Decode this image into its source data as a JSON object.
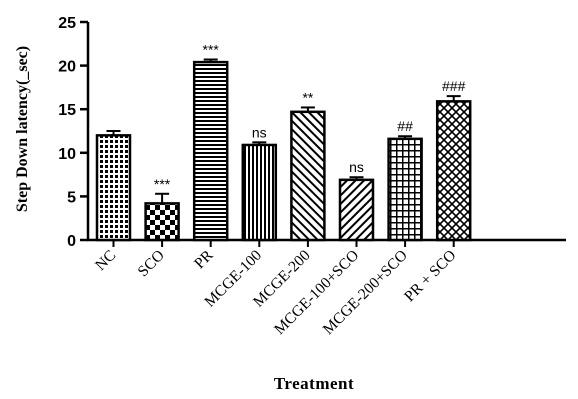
{
  "chart_data": {
    "type": "bar",
    "categories": [
      "NC",
      "SCO",
      "PR",
      "MCGE-100",
      "MCGE-200",
      "MCGE-100+SCO",
      "MCGE-200+SCO",
      "PR + SCO"
    ],
    "values": [
      12.0,
      4.2,
      20.4,
      10.9,
      14.7,
      6.9,
      11.6,
      15.9
    ],
    "errors": [
      0.5,
      1.1,
      0.3,
      0.3,
      0.5,
      0.3,
      0.3,
      0.6
    ],
    "annotations": [
      "",
      "***",
      "***",
      "ns",
      "**",
      "ns",
      "##",
      "###"
    ],
    "patterns": [
      "dots",
      "checker",
      "hlines",
      "vlines",
      "diag-up",
      "diag-down",
      "grid",
      "crosshatch"
    ],
    "ylabel": "Step Down latency(_sec)",
    "xlabel": "Treatment",
    "ylim": [
      0,
      25
    ],
    "yticks": [
      "0",
      "5",
      "10",
      "15",
      "20",
      "25"
    ],
    "grid": false,
    "bar_color": "#000000",
    "background": "#ffffff"
  }
}
